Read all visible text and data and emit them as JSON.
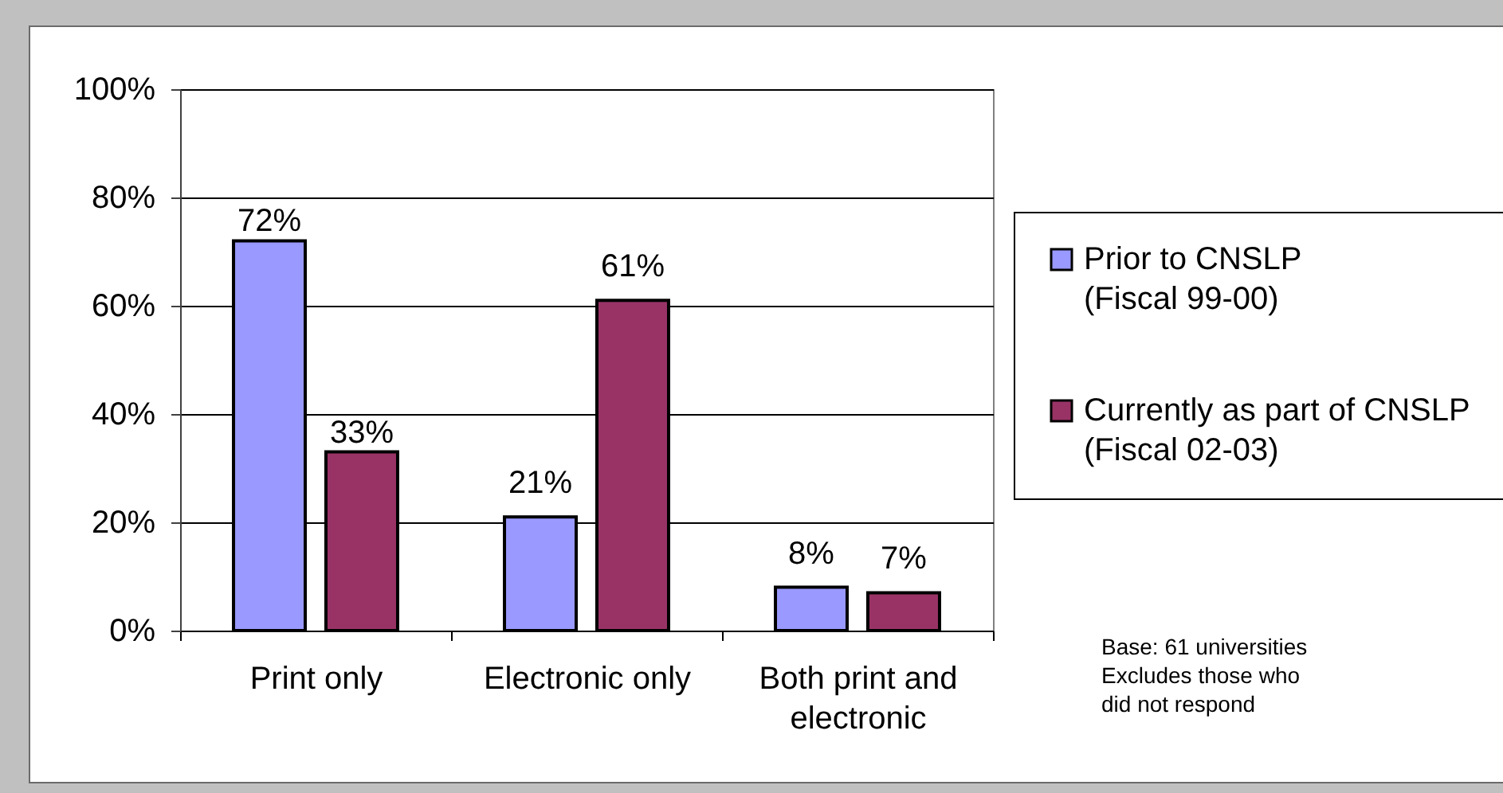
{
  "chart_data": {
    "type": "bar",
    "categories": [
      "Print only",
      "Electronic only",
      "Both print and electronic"
    ],
    "series": [
      {
        "name": "Prior to CNSLP (Fiscal 99-00)",
        "color": "#9999ff",
        "values": [
          72,
          21,
          8
        ],
        "value_labels": [
          "72%",
          "21%",
          "8%"
        ]
      },
      {
        "name": "Currently as part of CNSLP (Fiscal 02-03)",
        "color": "#993366",
        "values": [
          33,
          61,
          7
        ],
        "value_labels": [
          "33%",
          "61%",
          "7%"
        ]
      }
    ],
    "ylim": [
      0,
      100
    ],
    "yticks": [
      {
        "value": 0,
        "label": "0%"
      },
      {
        "value": 20,
        "label": "20%"
      },
      {
        "value": 40,
        "label": "40%"
      },
      {
        "value": 60,
        "label": "60%"
      },
      {
        "value": 80,
        "label": "80%"
      },
      {
        "value": 100,
        "label": "100%"
      }
    ],
    "grid": "y",
    "legend": "right",
    "annotations": [
      "Base: 61 universities",
      "Excludes those who did not respond"
    ]
  }
}
